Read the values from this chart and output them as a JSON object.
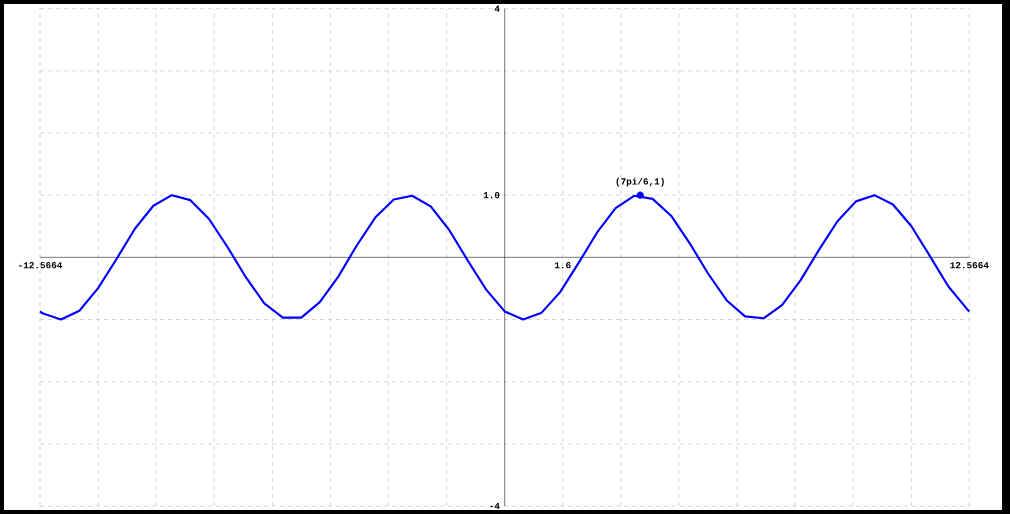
{
  "chart_data": {
    "type": "line",
    "xlim": [
      -12.5664,
      12.5664
    ],
    "ylim": [
      -4,
      4
    ],
    "xticks": [
      {
        "value": -12.5664,
        "label": "-12.5664"
      },
      {
        "value": -10.9956,
        "label": null
      },
      {
        "value": -9.4248,
        "label": null
      },
      {
        "value": -7.854,
        "label": null
      },
      {
        "value": -6.2832,
        "label": null
      },
      {
        "value": -4.7124,
        "label": null
      },
      {
        "value": -3.1416,
        "label": null
      },
      {
        "value": -1.5708,
        "label": null
      },
      {
        "value": 1.5708,
        "label": "1.6"
      },
      {
        "value": 3.1416,
        "label": null
      },
      {
        "value": 4.7124,
        "label": null
      },
      {
        "value": 6.2832,
        "label": null
      },
      {
        "value": 7.854,
        "label": null
      },
      {
        "value": 9.4248,
        "label": null
      },
      {
        "value": 10.9956,
        "label": null
      },
      {
        "value": 12.5664,
        "label": "12.5664"
      }
    ],
    "yticks": [
      -4,
      {
        "value": -3,
        "label": null
      },
      {
        "value": -2,
        "label": null
      },
      {
        "value": -1,
        "label": null
      },
      {
        "value": 1,
        "label": "1.0"
      },
      {
        "value": 2,
        "label": null
      },
      {
        "value": 3,
        "label": null
      },
      4
    ],
    "grid": true,
    "marker": "none",
    "line_style": "solid",
    "series": [
      {
        "color": "#0000ff",
        "x": [
          -12.5664,
          -12.5,
          -12,
          -11.5,
          -11,
          -10.5,
          -10,
          -9.5,
          -9,
          -8.5,
          -8,
          -7.5,
          -7,
          -6.5,
          -6,
          -5.5,
          -5,
          -4.5,
          -4,
          -3.5,
          -3,
          -2.5,
          -2,
          -1.5,
          -1,
          -0.5,
          0,
          0.5,
          1,
          1.5,
          2,
          2.5,
          3,
          3.5,
          4,
          4.5,
          5,
          5.5,
          6,
          6.5,
          7,
          7.5,
          8,
          8.5,
          9,
          9.5,
          10,
          10.5,
          11,
          11.5,
          12,
          12.5,
          12.5664
        ],
        "values": [
          -0.87,
          -0.9,
          -1.0,
          -0.86,
          -0.5,
          -0.03,
          0.46,
          0.83,
          1.0,
          0.92,
          0.62,
          0.17,
          -0.32,
          -0.74,
          -0.97,
          -0.97,
          -0.72,
          -0.31,
          0.19,
          0.64,
          0.93,
          0.99,
          0.82,
          0.44,
          -0.05,
          -0.52,
          -0.87,
          -1.0,
          -0.89,
          -0.56,
          -0.09,
          0.4,
          0.79,
          0.99,
          0.94,
          0.67,
          0.23,
          -0.26,
          -0.69,
          -0.95,
          -0.98,
          -0.77,
          -0.37,
          0.12,
          0.58,
          0.9,
          1.0,
          0.85,
          0.5,
          0.02,
          -0.47,
          -0.83,
          -0.87
        ]
      },
      {
        "type": "scatter",
        "color": "#0000ff",
        "marker": "circle",
        "x": [
          3.6652
        ],
        "values": [
          1
        ]
      }
    ],
    "annotations": [
      {
        "text": "(7pi/6,1)",
        "x": 3.6652,
        "y": 1
      }
    ]
  }
}
